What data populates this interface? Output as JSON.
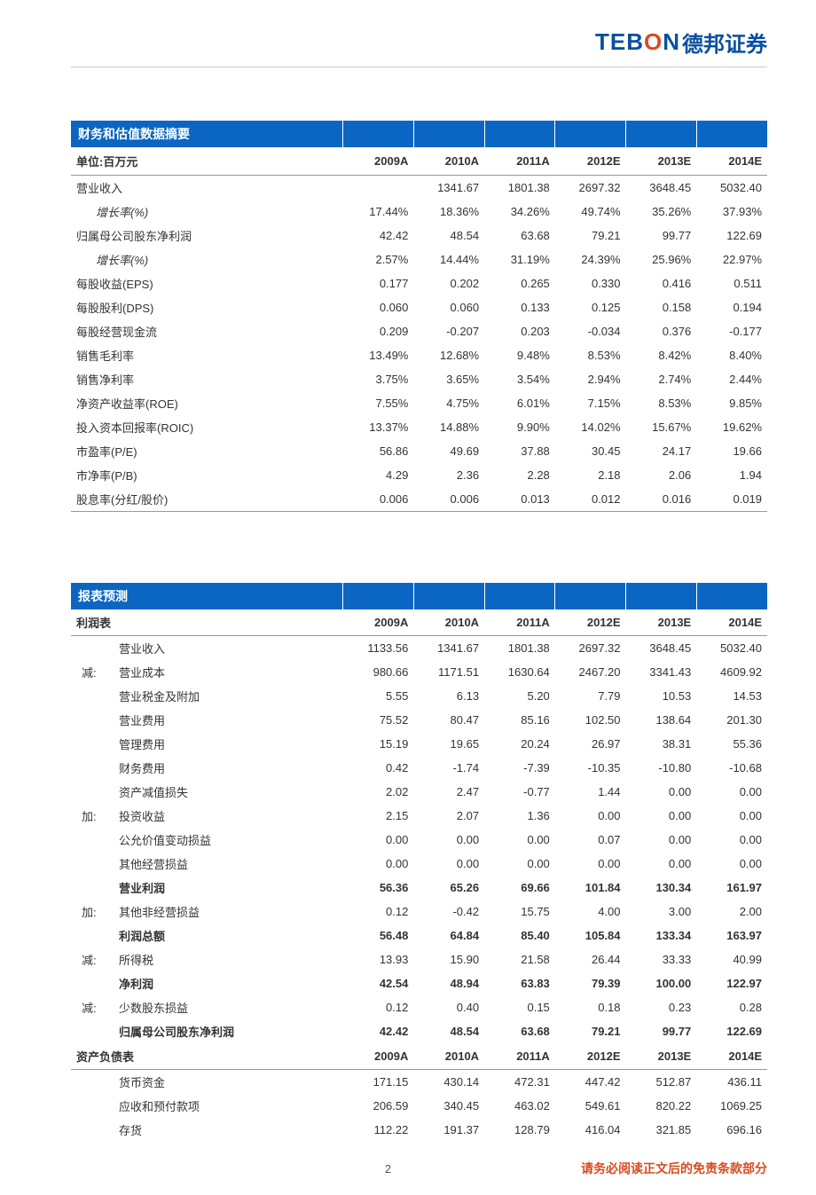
{
  "logo": {
    "tebon_t": "TEB",
    "tebon_o": "O",
    "tebon_n": "N",
    "cn": "德邦证券"
  },
  "colors": {
    "header_bg": "#0a66c2",
    "header_fg": "#ffffff",
    "border": "#999999",
    "accent": "#d94b1f",
    "brand": "#0a4fa0"
  },
  "years": [
    "2009A",
    "2010A",
    "2011A",
    "2012E",
    "2013E",
    "2014E"
  ],
  "table1": {
    "title": "财务和估值数据摘要",
    "unit_label": "单位:百万元",
    "rows": [
      {
        "label": "营业收入",
        "values": [
          "",
          "1341.67",
          "1801.38",
          "2697.32",
          "3648.45",
          "5032.40"
        ]
      },
      {
        "label": "增长率(%)",
        "indent": true,
        "italic": true,
        "values": [
          "17.44%",
          "18.36%",
          "34.26%",
          "49.74%",
          "35.26%",
          "37.93%"
        ]
      },
      {
        "label": "归属母公司股东净利润",
        "values": [
          "42.42",
          "48.54",
          "63.68",
          "79.21",
          "99.77",
          "122.69"
        ]
      },
      {
        "label": "增长率(%)",
        "indent": true,
        "italic": true,
        "values": [
          "2.57%",
          "14.44%",
          "31.19%",
          "24.39%",
          "25.96%",
          "22.97%"
        ]
      },
      {
        "label": "每股收益(EPS)",
        "values": [
          "0.177",
          "0.202",
          "0.265",
          "0.330",
          "0.416",
          "0.511"
        ]
      },
      {
        "label": "每股股利(DPS)",
        "values": [
          "0.060",
          "0.060",
          "0.133",
          "0.125",
          "0.158",
          "0.194"
        ]
      },
      {
        "label": "每股经营现金流",
        "values": [
          "0.209",
          "-0.207",
          "0.203",
          "-0.034",
          "0.376",
          "-0.177"
        ]
      },
      {
        "label": "销售毛利率",
        "values": [
          "13.49%",
          "12.68%",
          "9.48%",
          "8.53%",
          "8.42%",
          "8.40%"
        ]
      },
      {
        "label": "销售净利率",
        "values": [
          "3.75%",
          "3.65%",
          "3.54%",
          "2.94%",
          "2.74%",
          "2.44%"
        ]
      },
      {
        "label": "净资产收益率(ROE)",
        "values": [
          "7.55%",
          "4.75%",
          "6.01%",
          "7.15%",
          "8.53%",
          "9.85%"
        ]
      },
      {
        "label": "投入资本回报率(ROIC)",
        "values": [
          "13.37%",
          "14.88%",
          "9.90%",
          "14.02%",
          "15.67%",
          "19.62%"
        ]
      },
      {
        "label": "市盈率(P/E)",
        "values": [
          "56.86",
          "49.69",
          "37.88",
          "30.45",
          "24.17",
          "19.66"
        ]
      },
      {
        "label": "市净率(P/B)",
        "values": [
          "4.29",
          "2.36",
          "2.28",
          "2.18",
          "2.06",
          "1.94"
        ]
      },
      {
        "label": "股息率(分红/股价)",
        "values": [
          "0.006",
          "0.006",
          "0.013",
          "0.012",
          "0.016",
          "0.019"
        ]
      }
    ]
  },
  "table2": {
    "title": "报表预测",
    "sections": [
      {
        "header": "利润表",
        "rows": [
          {
            "prefix": "",
            "label": "营业收入",
            "indent": 1,
            "values": [
              "1133.56",
              "1341.67",
              "1801.38",
              "2697.32",
              "3648.45",
              "5032.40"
            ]
          },
          {
            "prefix": "减:",
            "label": "营业成本",
            "indent": 1,
            "values": [
              "980.66",
              "1171.51",
              "1630.64",
              "2467.20",
              "3341.43",
              "4609.92"
            ]
          },
          {
            "prefix": "",
            "label": "营业税金及附加",
            "indent": 1,
            "values": [
              "5.55",
              "6.13",
              "5.20",
              "7.79",
              "10.53",
              "14.53"
            ]
          },
          {
            "prefix": "",
            "label": "营业费用",
            "indent": 1,
            "values": [
              "75.52",
              "80.47",
              "85.16",
              "102.50",
              "138.64",
              "201.30"
            ]
          },
          {
            "prefix": "",
            "label": "管理费用",
            "indent": 1,
            "values": [
              "15.19",
              "19.65",
              "20.24",
              "26.97",
              "38.31",
              "55.36"
            ]
          },
          {
            "prefix": "",
            "label": "财务费用",
            "indent": 1,
            "values": [
              "0.42",
              "-1.74",
              "-7.39",
              "-10.35",
              "-10.80",
              "-10.68"
            ]
          },
          {
            "prefix": "",
            "label": "资产减值损失",
            "indent": 1,
            "values": [
              "2.02",
              "2.47",
              "-0.77",
              "1.44",
              "0.00",
              "0.00"
            ]
          },
          {
            "prefix": "加:",
            "label": "投资收益",
            "indent": 1,
            "values": [
              "2.15",
              "2.07",
              "1.36",
              "0.00",
              "0.00",
              "0.00"
            ]
          },
          {
            "prefix": "",
            "label": "公允价值变动损益",
            "indent": 1,
            "values": [
              "0.00",
              "0.00",
              "0.00",
              "0.07",
              "0.00",
              "0.00"
            ]
          },
          {
            "prefix": "",
            "label": "其他经营损益",
            "indent": 1,
            "values": [
              "0.00",
              "0.00",
              "0.00",
              "0.00",
              "0.00",
              "0.00"
            ]
          },
          {
            "prefix": "",
            "label": "营业利润",
            "indent": 1,
            "bold": true,
            "values": [
              "56.36",
              "65.26",
              "69.66",
              "101.84",
              "130.34",
              "161.97"
            ]
          },
          {
            "prefix": "加:",
            "label": "其他非经营损益",
            "indent": 1,
            "values": [
              "0.12",
              "-0.42",
              "15.75",
              "4.00",
              "3.00",
              "2.00"
            ]
          },
          {
            "prefix": "",
            "label": "利润总额",
            "indent": 1,
            "bold": true,
            "values": [
              "56.48",
              "64.84",
              "85.40",
              "105.84",
              "133.34",
              "163.97"
            ]
          },
          {
            "prefix": "减:",
            "label": "所得税",
            "indent": 1,
            "values": [
              "13.93",
              "15.90",
              "21.58",
              "26.44",
              "33.33",
              "40.99"
            ]
          },
          {
            "prefix": "",
            "label": "净利润",
            "indent": 1,
            "bold": true,
            "values": [
              "42.54",
              "48.94",
              "63.83",
              "79.39",
              "100.00",
              "122.97"
            ]
          },
          {
            "prefix": "减:",
            "label": "少数股东损益",
            "indent": 1,
            "values": [
              "0.12",
              "0.40",
              "0.15",
              "0.18",
              "0.23",
              "0.28"
            ]
          },
          {
            "prefix": "",
            "label": "归属母公司股东净利润",
            "indent": 1,
            "bold": true,
            "values": [
              "42.42",
              "48.54",
              "63.68",
              "79.21",
              "99.77",
              "122.69"
            ]
          }
        ]
      },
      {
        "header": "资产负债表",
        "rows": [
          {
            "prefix": "",
            "label": "货币资金",
            "indent": 1,
            "values": [
              "171.15",
              "430.14",
              "472.31",
              "447.42",
              "512.87",
              "436.11"
            ]
          },
          {
            "prefix": "",
            "label": "应收和预付款项",
            "indent": 1,
            "values": [
              "206.59",
              "340.45",
              "463.02",
              "549.61",
              "820.22",
              "1069.25"
            ]
          },
          {
            "prefix": "",
            "label": "存货",
            "indent": 1,
            "values": [
              "112.22",
              "191.37",
              "128.79",
              "416.04",
              "321.85",
              "696.16"
            ]
          }
        ]
      }
    ]
  },
  "footer": {
    "page": "2",
    "disclaimer": "请务必阅读正文后的免责条款部分"
  }
}
